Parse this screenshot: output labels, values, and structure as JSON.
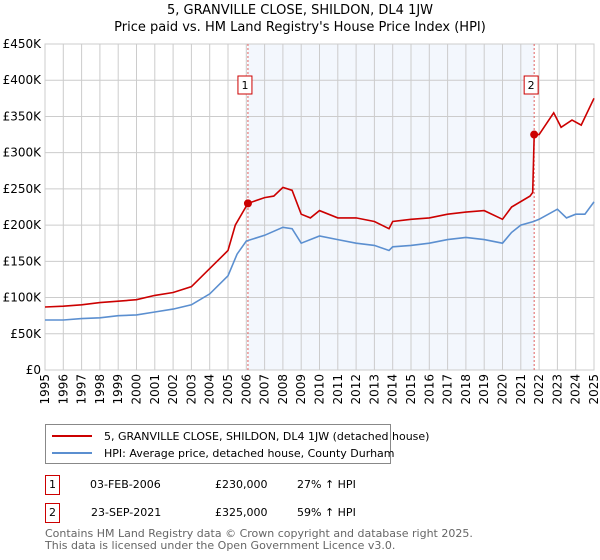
{
  "title": "5, GRANVILLE CLOSE, SHILDON, DL4 1JW",
  "subtitle": "Price paid vs. HM Land Registry's House Price Index (HPI)",
  "chart_data": {
    "type": "line",
    "title": "5, GRANVILLE CLOSE, SHILDON, DL4 1JW",
    "subtitle": "Price paid vs. HM Land Registry's House Price Index (HPI)",
    "xlim": [
      1995,
      2025
    ],
    "ylim": [
      0,
      450000
    ],
    "x_ticks": [
      "1995",
      "1996",
      "1997",
      "1998",
      "1999",
      "2000",
      "2001",
      "2002",
      "2003",
      "2004",
      "2005",
      "2006",
      "2007",
      "2008",
      "2009",
      "2010",
      "2011",
      "2012",
      "2013",
      "2014",
      "2015",
      "2016",
      "2017",
      "2018",
      "2019",
      "2020",
      "2021",
      "2022",
      "2023",
      "2024",
      "2025"
    ],
    "y_ticks": [
      {
        "v": 0,
        "label": "£0"
      },
      {
        "v": 50000,
        "label": "£50K"
      },
      {
        "v": 100000,
        "label": "£100K"
      },
      {
        "v": 150000,
        "label": "£150K"
      },
      {
        "v": 200000,
        "label": "£200K"
      },
      {
        "v": 250000,
        "label": "£250K"
      },
      {
        "v": 300000,
        "label": "£300K"
      },
      {
        "v": 350000,
        "label": "£350K"
      },
      {
        "v": 400000,
        "label": "£400K"
      },
      {
        "v": 450000,
        "label": "£450K"
      }
    ],
    "grid": true,
    "shaded_range": [
      2006.09,
      2021.73
    ],
    "series": [
      {
        "name": "5, GRANVILLE CLOSE, SHILDON, DL4 1JW (detached house)",
        "color": "#cc0000",
        "x": [
          1995,
          1996,
          1997,
          1998,
          1999,
          2000,
          2001,
          2002,
          2003,
          2004,
          2005,
          2005.4,
          2006.09,
          2007,
          2007.5,
          2008,
          2008.5,
          2009,
          2009.5,
          2010,
          2011,
          2012,
          2013,
          2013.8,
          2014,
          2015,
          2016,
          2017,
          2018,
          2019,
          2020,
          2020.5,
          2021.5,
          2021.65,
          2021.73,
          2022,
          2022.8,
          2023.2,
          2023.8,
          2024.3,
          2025
        ],
        "y": [
          87000,
          88000,
          90000,
          93000,
          95000,
          97000,
          103000,
          107000,
          115000,
          140000,
          165000,
          200000,
          230000,
          238000,
          240000,
          252000,
          248000,
          215000,
          210000,
          220000,
          210000,
          210000,
          205000,
          195000,
          205000,
          208000,
          210000,
          215000,
          218000,
          220000,
          208000,
          225000,
          240000,
          245000,
          325000,
          325000,
          355000,
          335000,
          345000,
          338000,
          375000
        ]
      },
      {
        "name": "HPI: Average price, detached house, County Durham",
        "color": "#5b8fd0",
        "x": [
          1995,
          1996,
          1997,
          1998,
          1999,
          2000,
          2001,
          2002,
          2003,
          2004,
          2005,
          2005.5,
          2006,
          2007,
          2008,
          2008.5,
          2009,
          2010,
          2011,
          2012,
          2013,
          2013.8,
          2014,
          2015,
          2016,
          2017,
          2018,
          2019,
          2020,
          2020.5,
          2021,
          2021.7,
          2022,
          2023,
          2023.5,
          2024,
          2024.5,
          2025
        ],
        "y": [
          69000,
          69000,
          71000,
          72000,
          75000,
          76000,
          80000,
          84000,
          90000,
          105000,
          130000,
          160000,
          178000,
          186000,
          197000,
          195000,
          175000,
          185000,
          180000,
          175000,
          172000,
          165000,
          170000,
          172000,
          175000,
          180000,
          183000,
          180000,
          175000,
          190000,
          200000,
          205000,
          208000,
          222000,
          210000,
          215000,
          215000,
          232000
        ]
      }
    ],
    "sales": [
      {
        "id": "1",
        "x": 2006.09,
        "y": 230000,
        "date": "03-FEB-2006",
        "price": "£230,000",
        "delta": "27% ↑ HPI"
      },
      {
        "id": "2",
        "x": 2021.73,
        "y": 325000,
        "date": "23-SEP-2021",
        "price": "£325,000",
        "delta": "59% ↑ HPI"
      }
    ]
  },
  "legend": {
    "property": "5, GRANVILLE CLOSE, SHILDON, DL4 1JW (detached house)",
    "hpi": "HPI: Average price, detached house, County Durham"
  },
  "footer": {
    "line1": "Contains HM Land Registry data © Crown copyright and database right 2025.",
    "line2": "This data is licensed under the Open Government Licence v3.0."
  }
}
